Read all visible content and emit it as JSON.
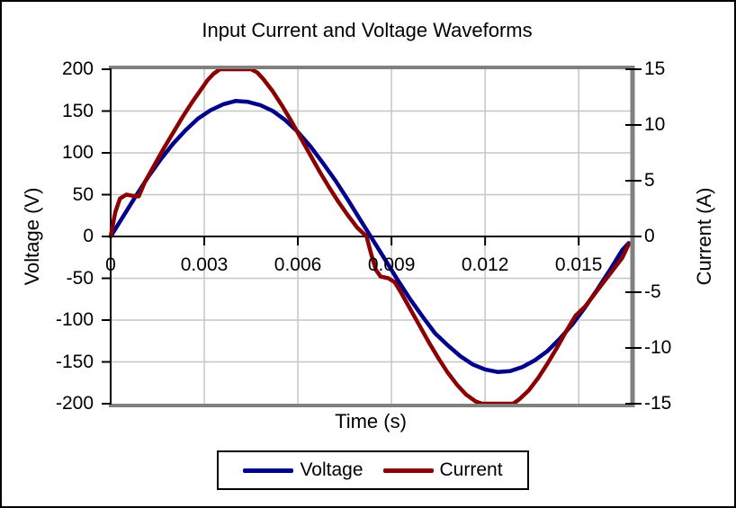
{
  "chart_data": {
    "type": "line",
    "title": "Input Current and Voltage Waveforms",
    "xlabel": "Time (s)",
    "xlim": [
      0,
      0.016667
    ],
    "x_ticks": [
      "0",
      "0.003",
      "0.006",
      "0.009",
      "0.012",
      "0.015"
    ],
    "x_tick_values": [
      0,
      0.003,
      0.006,
      0.009,
      0.012,
      0.015
    ],
    "grid": true,
    "grid_color": "#c6c6c6",
    "frame_color": "#808080",
    "legend_position": "bottom",
    "axes": {
      "left": {
        "label": "Voltage (V)",
        "lim": [
          -200,
          200
        ],
        "ticks": [
          200,
          150,
          100,
          50,
          0,
          -50,
          -100,
          -150,
          -200
        ]
      },
      "right": {
        "label": "Current (A)",
        "lim": [
          -15,
          15
        ],
        "ticks": [
          15,
          10,
          5,
          0,
          -5,
          -10,
          -15
        ]
      }
    },
    "series": [
      {
        "name": "Voltage",
        "axis": "left",
        "color": "#00008B",
        "points": [
          [
            0,
            0
          ],
          [
            0.0004,
            24
          ],
          [
            0.0008,
            48
          ],
          [
            0.0012,
            71
          ],
          [
            0.0016,
            92
          ],
          [
            0.002,
            111
          ],
          [
            0.0024,
            127
          ],
          [
            0.0028,
            141
          ],
          [
            0.0032,
            151
          ],
          [
            0.0036,
            158
          ],
          [
            0.004,
            162
          ],
          [
            0.0044,
            161
          ],
          [
            0.0048,
            157
          ],
          [
            0.0052,
            150
          ],
          [
            0.0056,
            139
          ],
          [
            0.006,
            125
          ],
          [
            0.0064,
            108
          ],
          [
            0.0068,
            88
          ],
          [
            0.0072,
            67
          ],
          [
            0.0076,
            44
          ],
          [
            0.008,
            20
          ],
          [
            0.0084,
            -4
          ],
          [
            0.0088,
            -28
          ],
          [
            0.0092,
            -52
          ],
          [
            0.0096,
            -75
          ],
          [
            0.01,
            -96
          ],
          [
            0.0104,
            -116
          ],
          [
            0.0108,
            -130
          ],
          [
            0.0112,
            -143
          ],
          [
            0.0116,
            -153
          ],
          [
            0.012,
            -159
          ],
          [
            0.0124,
            -162
          ],
          [
            0.0128,
            -161
          ],
          [
            0.0132,
            -156
          ],
          [
            0.0136,
            -148
          ],
          [
            0.014,
            -137
          ],
          [
            0.0144,
            -122
          ],
          [
            0.0148,
            -105
          ],
          [
            0.0152,
            -85
          ],
          [
            0.0156,
            -63
          ],
          [
            0.016,
            -40
          ],
          [
            0.0164,
            -16
          ],
          [
            0.0166,
            -8
          ]
        ]
      },
      {
        "name": "Current",
        "axis": "right",
        "color": "#8B0000",
        "points": [
          [
            0,
            0
          ],
          [
            0.00015,
            2.2
          ],
          [
            0.0003,
            3.4
          ],
          [
            0.0005,
            3.75
          ],
          [
            0.0007,
            3.65
          ],
          [
            0.0009,
            3.6
          ],
          [
            0.0011,
            4.9
          ],
          [
            0.0014,
            6.4
          ],
          [
            0.0017,
            7.9
          ],
          [
            0.002,
            9.3
          ],
          [
            0.0023,
            10.7
          ],
          [
            0.0026,
            12.0
          ],
          [
            0.0029,
            13.2
          ],
          [
            0.0031,
            14.0
          ],
          [
            0.0033,
            14.6
          ],
          [
            0.0035,
            15
          ],
          [
            0.0045,
            15
          ],
          [
            0.0047,
            14.7
          ],
          [
            0.0049,
            14.1
          ],
          [
            0.0052,
            13.0
          ],
          [
            0.0055,
            11.7
          ],
          [
            0.0058,
            10.3
          ],
          [
            0.0061,
            8.8
          ],
          [
            0.0064,
            7.3
          ],
          [
            0.0067,
            5.8
          ],
          [
            0.007,
            4.4
          ],
          [
            0.0073,
            3.1
          ],
          [
            0.0076,
            1.9
          ],
          [
            0.0079,
            0.8
          ],
          [
            0.0082,
            0
          ],
          [
            0.00835,
            -1.6
          ],
          [
            0.0085,
            -3.0
          ],
          [
            0.00865,
            -3.6
          ],
          [
            0.0089,
            -3.75
          ],
          [
            0.0091,
            -4.1
          ],
          [
            0.0093,
            -5.0
          ],
          [
            0.0096,
            -6.5
          ],
          [
            0.0099,
            -8.0
          ],
          [
            0.0102,
            -9.5
          ],
          [
            0.0105,
            -10.9
          ],
          [
            0.0108,
            -12.2
          ],
          [
            0.0111,
            -13.3
          ],
          [
            0.0114,
            -14.2
          ],
          [
            0.0117,
            -14.8
          ],
          [
            0.0119,
            -15
          ],
          [
            0.0129,
            -15
          ],
          [
            0.0131,
            -14.6
          ],
          [
            0.0134,
            -13.8
          ],
          [
            0.0137,
            -12.7
          ],
          [
            0.014,
            -11.4
          ],
          [
            0.0143,
            -10.0
          ],
          [
            0.0146,
            -8.5
          ],
          [
            0.0149,
            -7.1
          ],
          [
            0.0152,
            -6.3
          ],
          [
            0.0155,
            -5.2
          ],
          [
            0.0158,
            -4.1
          ],
          [
            0.0161,
            -3.0
          ],
          [
            0.0164,
            -1.9
          ],
          [
            0.0166,
            -0.7
          ]
        ]
      }
    ]
  }
}
